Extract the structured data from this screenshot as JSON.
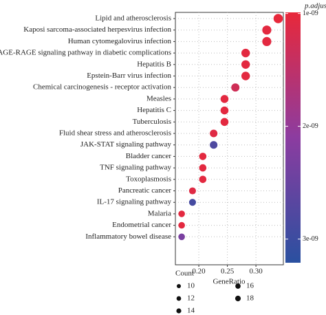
{
  "chart_data": {
    "type": "dot",
    "x_label": "GeneRatio",
    "categories": [
      "Lipid and atherosclerosis",
      "Kaposi sarcoma-associated herpesvirus infection",
      "Human cytomegalovirus infection",
      "AGE-RAGE signaling pathway in diabetic complications",
      "Hepatitis B",
      "Epstein-Barr virus infection",
      "Chemical carcinogenesis - receptor activation",
      "Measles",
      "Hepatitis C",
      "Tuberculosis",
      "Fluid shear stress and atherosclerosis",
      "JAK-STAT signaling pathway",
      "Bladder cancer",
      "TNF signaling pathway",
      "Toxoplasmosis",
      "Pancreatic cancer",
      "IL-17 signaling pathway",
      "Malaria",
      "Endometrial cancer",
      "Inflammatory bowel disease"
    ],
    "values": [
      0.339,
      0.319,
      0.319,
      0.282,
      0.282,
      0.282,
      0.264,
      0.245,
      0.245,
      0.245,
      0.226,
      0.226,
      0.207,
      0.207,
      0.207,
      0.189,
      0.189,
      0.17,
      0.17,
      0.17
    ],
    "counts": [
      18,
      17,
      17,
      15,
      15,
      15,
      14,
      13,
      13,
      13,
      12,
      12,
      11,
      11,
      11,
      10,
      10,
      9,
      9,
      9
    ],
    "padjust": [
      1e-09,
      1.05e-09,
      1.05e-09,
      1.05e-09,
      1.05e-09,
      1.05e-09,
      1.3e-09,
      1.05e-09,
      1.05e-09,
      1.05e-09,
      1.1e-09,
      2.8e-09,
      1.05e-09,
      1.05e-09,
      1.05e-09,
      1.1e-09,
      2.9e-09,
      1.05e-09,
      1.05e-09,
      2.3e-09
    ],
    "xlim": [
      0.159,
      0.348
    ],
    "xticks": [
      {
        "value": 0.2,
        "label": "0.20"
      },
      0.25,
      {
        "value": 0.3,
        "label": "0.30"
      }
    ],
    "grid": true,
    "size_legend": {
      "title": "Count",
      "values": [
        10,
        12,
        14,
        16,
        18
      ]
    },
    "color_legend": {
      "title": "p.adjust",
      "clim": [
        9.9e-10,
        3.21e-09
      ],
      "ticks": [
        {
          "value": 1e-09,
          "label": "1e-09"
        },
        {
          "value": 2e-09,
          "label": "2e-09"
        },
        {
          "value": 3e-09,
          "label": "3e-09"
        }
      ],
      "colors": [
        "#e8283a",
        "#8c3ca0",
        "#2a50a0"
      ]
    }
  }
}
